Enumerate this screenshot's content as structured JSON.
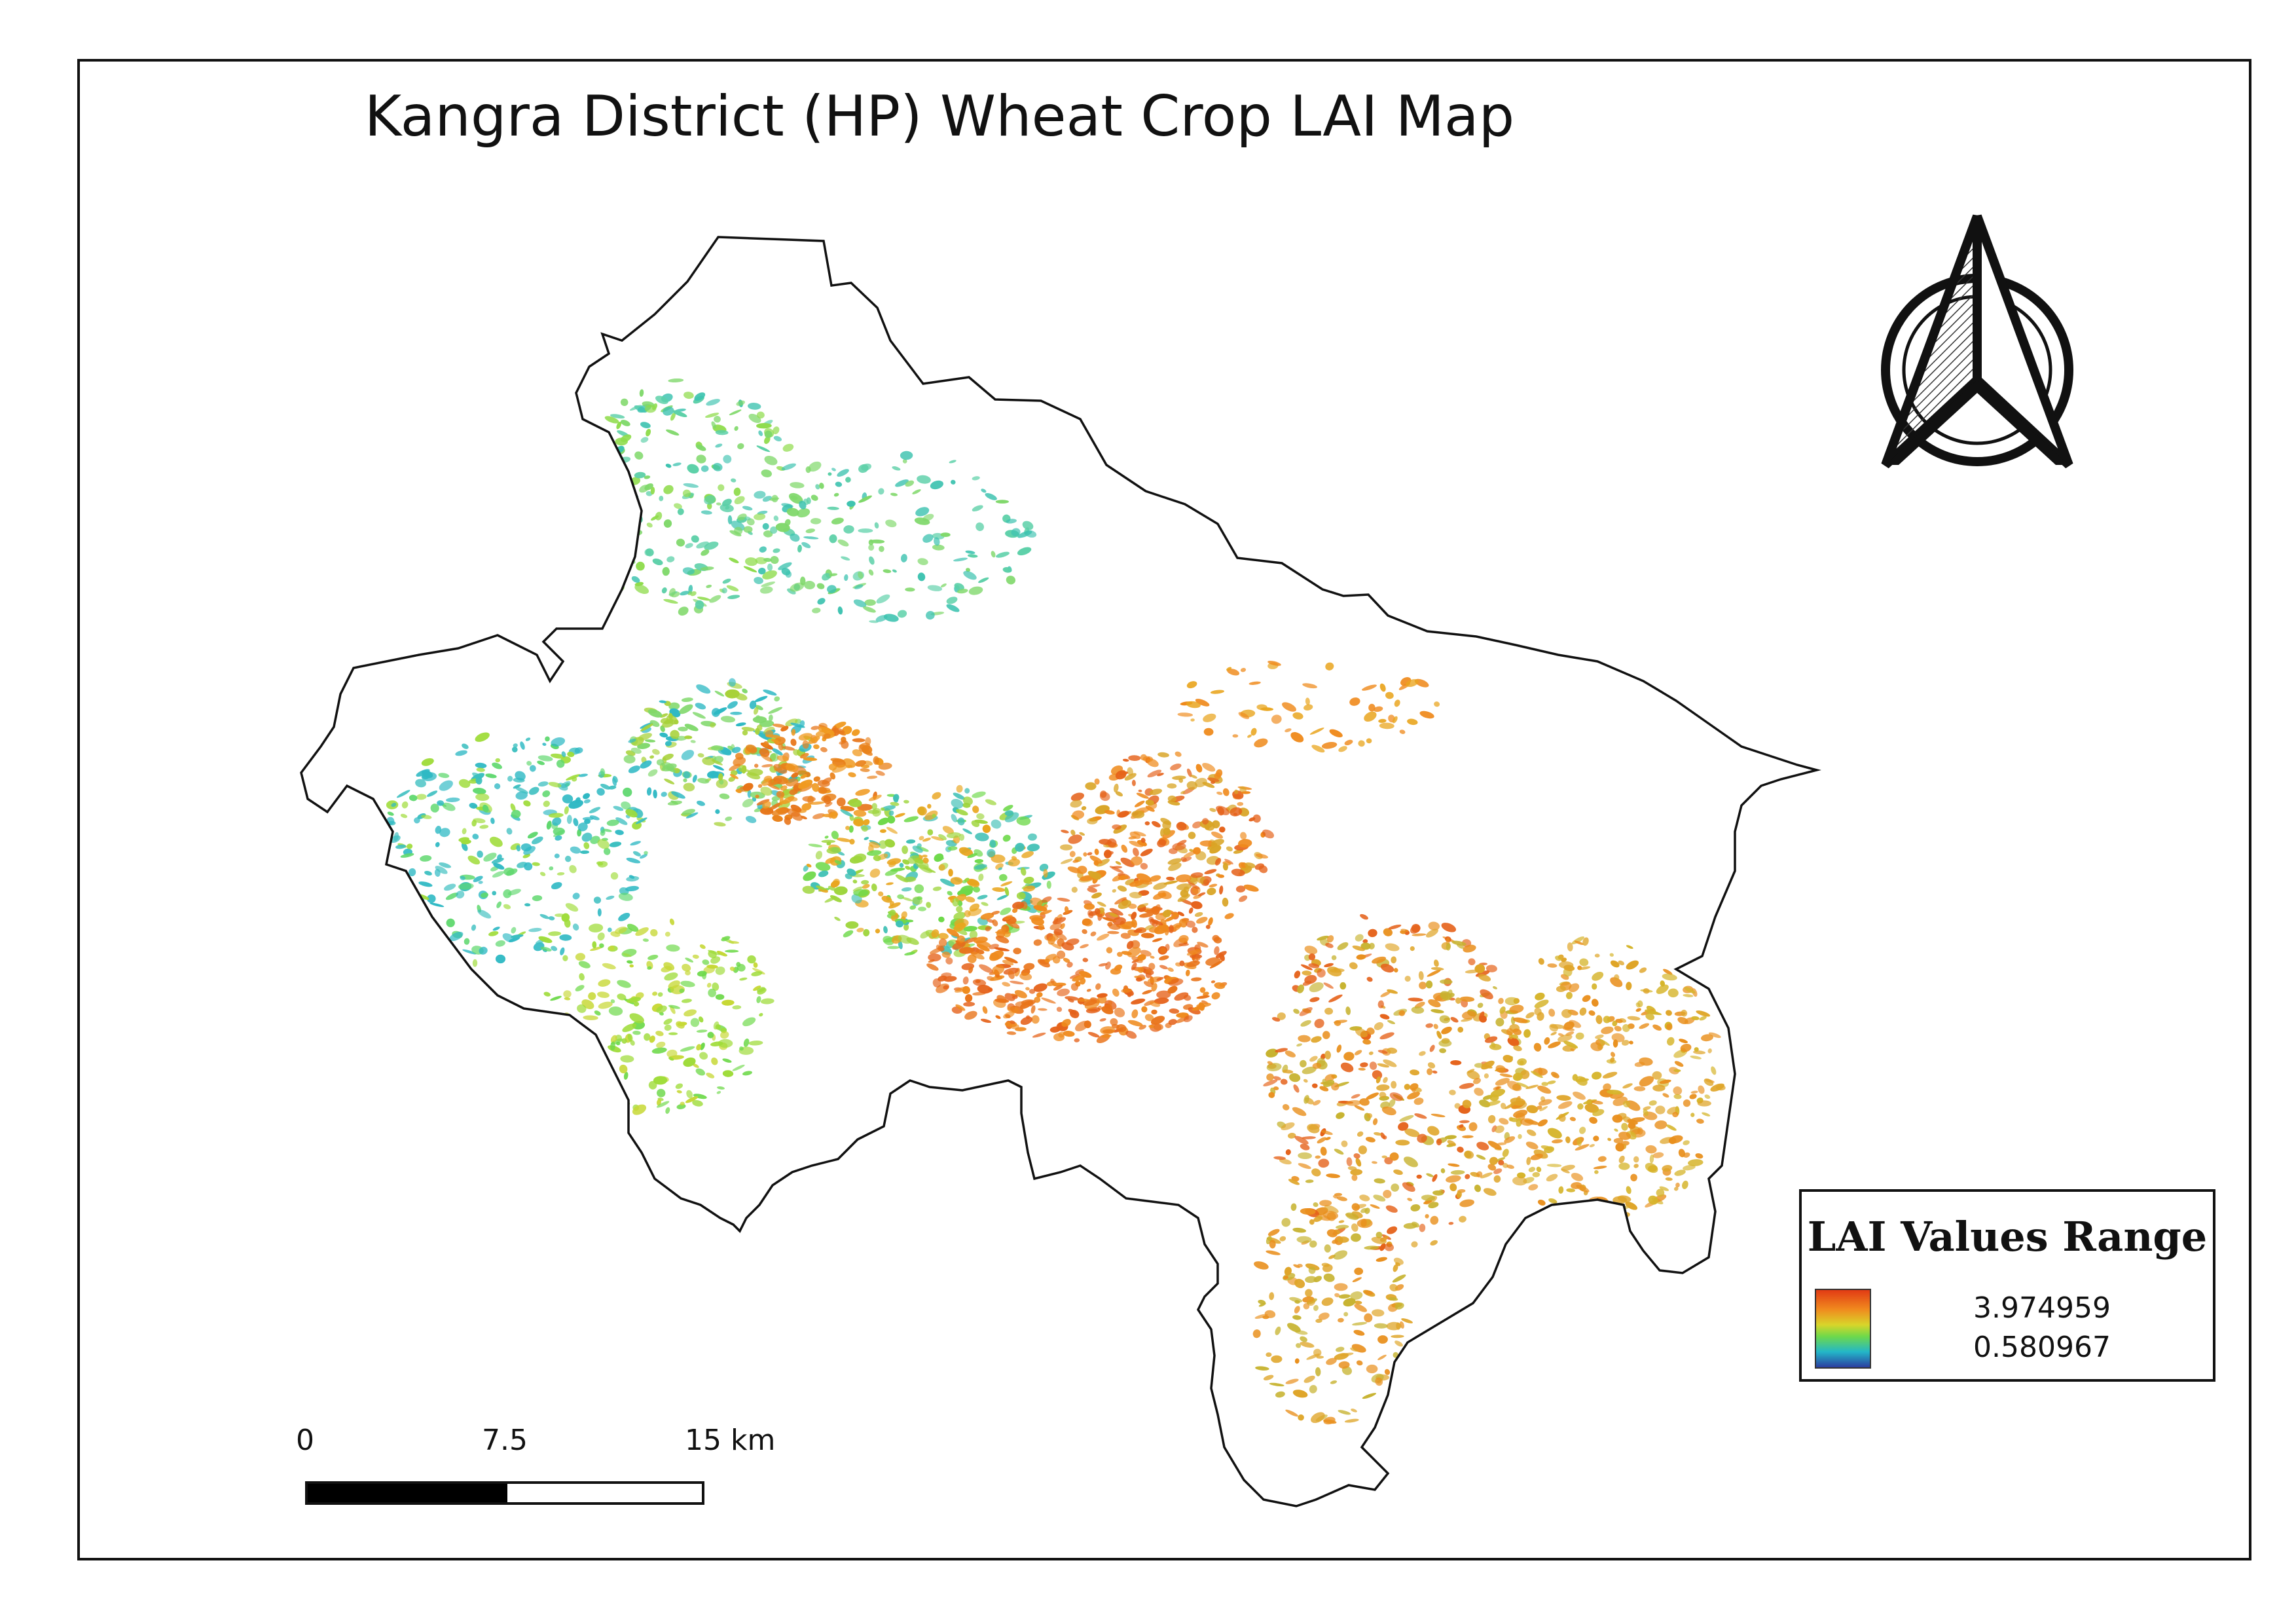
{
  "map": {
    "title": "Kangra District (HP) Wheat Crop LAI Map"
  },
  "legend": {
    "title": "LAI Values Range",
    "max_label": "3.974959",
    "min_label": "0.580967",
    "ramp_colors": [
      "#e23b14",
      "#f08a1e",
      "#d9d52a",
      "#6ed94a",
      "#23b7c8",
      "#2b3ea0"
    ],
    "max_value": 3.974959,
    "min_value": 0.580967
  },
  "scale_bar": {
    "labels": [
      "0",
      "7.5",
      "15 km"
    ]
  },
  "north_arrow": {
    "icon": "north-arrow-icon"
  }
}
